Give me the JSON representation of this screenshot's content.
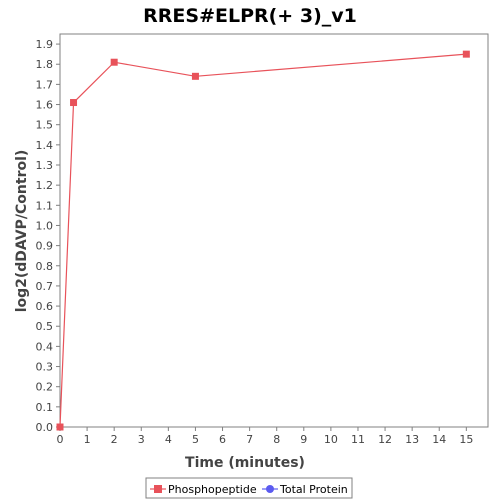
{
  "chart_data": {
    "type": "line",
    "title": "RRES#ELPR(+ 3)_v1",
    "xlabel": "Time (minutes)",
    "ylabel": "log2(dDAVP/Control)",
    "xlim": [
      0,
      15.8
    ],
    "ylim": [
      0,
      1.95
    ],
    "x_ticks": [
      0,
      1,
      2,
      3,
      4,
      5,
      6,
      7,
      8,
      9,
      10,
      11,
      12,
      13,
      14,
      15
    ],
    "y_ticks": [
      0.0,
      0.1,
      0.2,
      0.3,
      0.4,
      0.5,
      0.6,
      0.7,
      0.8,
      0.9,
      1.0,
      1.1,
      1.2,
      1.3,
      1.4,
      1.5,
      1.6,
      1.7,
      1.8,
      1.9
    ],
    "grid": false,
    "legend_position": "bottom-center",
    "series": [
      {
        "name": "Phosphopeptide",
        "color": "#e8525a",
        "marker": "square",
        "x": [
          0,
          0.5,
          2,
          5,
          15
        ],
        "y": [
          0.0,
          1.61,
          1.81,
          1.74,
          1.85
        ]
      }
    ],
    "legend": [
      {
        "name": "Phosphopeptide",
        "color": "#e8525a",
        "marker": "square"
      },
      {
        "name": "Total Protein",
        "color": "#5b5bf0",
        "marker": "circle"
      }
    ]
  }
}
